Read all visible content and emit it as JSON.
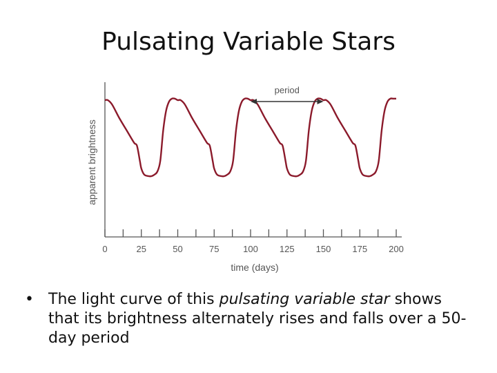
{
  "slide": {
    "title": "Pulsating Variable Stars",
    "bullet_symbol": "•",
    "bullet": {
      "before": "The light curve of this ",
      "emphasis": "pulsating variable star",
      "after": " shows that its brightness alternately rises and falls over a 50-day period"
    }
  },
  "chart_data": {
    "type": "line",
    "xlabel": "time (days)",
    "ylabel": "apparent brightness",
    "xlim": [
      0,
      200
    ],
    "x_ticks": [
      0,
      25,
      50,
      75,
      100,
      125,
      150,
      175,
      200
    ],
    "x_minor_ticks": [
      12.5,
      37.5,
      62.5,
      87.5,
      112.5,
      137.5,
      162.5,
      187.5
    ],
    "ylim": [
      0,
      1
    ],
    "y_tick_labels": false,
    "grid": false,
    "annotation": {
      "label": "period",
      "x_start": 100,
      "x_end": 150
    },
    "series": [
      {
        "color": "#8b1a2b",
        "x": [
          0,
          2,
          5,
          10,
          15,
          20,
          22,
          24,
          25,
          27,
          30,
          32,
          34,
          36,
          38,
          40,
          42,
          44,
          46,
          48,
          50,
          52,
          55,
          60,
          65,
          70,
          72,
          74,
          75,
          77,
          80,
          82,
          84,
          86,
          88,
          90,
          92,
          94,
          96,
          98,
          100,
          102,
          105,
          110,
          115,
          120,
          122,
          124,
          125,
          127,
          130,
          132,
          134,
          136,
          138,
          140,
          142,
          144,
          146,
          148,
          150,
          152,
          155,
          160,
          165,
          170,
          172,
          174,
          175,
          177,
          180,
          182,
          184,
          186,
          188,
          190,
          192,
          194,
          196,
          198,
          200
        ],
        "y": [
          0.9,
          0.9,
          0.87,
          0.78,
          0.7,
          0.62,
          0.6,
          0.5,
          0.45,
          0.41,
          0.4,
          0.4,
          0.41,
          0.43,
          0.5,
          0.7,
          0.83,
          0.89,
          0.91,
          0.91,
          0.9,
          0.9,
          0.87,
          0.78,
          0.7,
          0.62,
          0.6,
          0.5,
          0.45,
          0.41,
          0.4,
          0.4,
          0.41,
          0.43,
          0.5,
          0.7,
          0.83,
          0.89,
          0.91,
          0.91,
          0.9,
          0.9,
          0.87,
          0.78,
          0.7,
          0.62,
          0.6,
          0.5,
          0.45,
          0.41,
          0.4,
          0.4,
          0.41,
          0.43,
          0.5,
          0.7,
          0.83,
          0.89,
          0.91,
          0.91,
          0.9,
          0.9,
          0.87,
          0.78,
          0.7,
          0.62,
          0.6,
          0.5,
          0.45,
          0.41,
          0.4,
          0.4,
          0.41,
          0.43,
          0.5,
          0.7,
          0.83,
          0.89,
          0.91,
          0.91,
          0.91
        ]
      }
    ]
  }
}
